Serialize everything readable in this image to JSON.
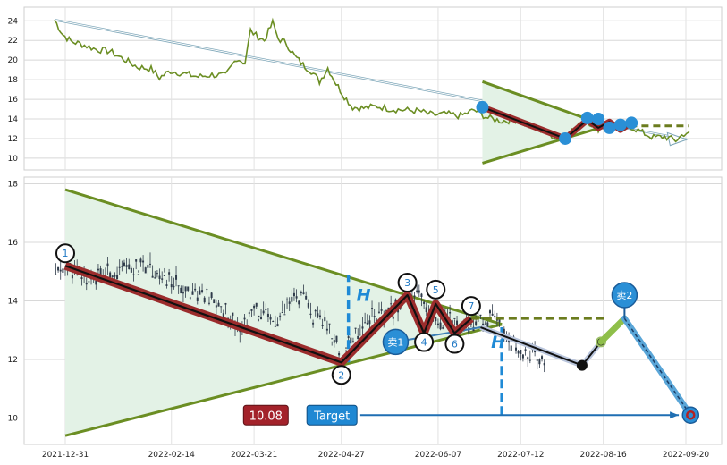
{
  "chart_data": [
    {
      "type": "line",
      "panel": "overview",
      "y_ticks": [
        10,
        12,
        14,
        16,
        18,
        20,
        22,
        24
      ],
      "ylim": [
        8.9,
        25.3
      ],
      "series_color": "#6b8e23",
      "price_series": [
        [
          0,
          24.1
        ],
        [
          3,
          22.6
        ],
        [
          6,
          21.9
        ],
        [
          10,
          21.6
        ],
        [
          15,
          21.1
        ],
        [
          20,
          20.9
        ],
        [
          25,
          20.1
        ],
        [
          30,
          19.3
        ],
        [
          35,
          19.1
        ],
        [
          38,
          18.2
        ],
        [
          42,
          18.9
        ],
        [
          47,
          18.6
        ],
        [
          52,
          18.3
        ],
        [
          57,
          18.5
        ],
        [
          62,
          18.4
        ],
        [
          66,
          20.2
        ],
        [
          69,
          19.7
        ],
        [
          71,
          23.0
        ],
        [
          73,
          22.5
        ],
        [
          76,
          22.0
        ],
        [
          79,
          23.8
        ],
        [
          81,
          22.2
        ],
        [
          84,
          21.7
        ],
        [
          87,
          20.4
        ],
        [
          90,
          19.5
        ],
        [
          93,
          18.9
        ],
        [
          96,
          17.8
        ],
        [
          99,
          19.2
        ],
        [
          102,
          17.6
        ],
        [
          105,
          16.3
        ],
        [
          108,
          15.2
        ],
        [
          112,
          15.1
        ],
        [
          117,
          15.3
        ],
        [
          122,
          15.0
        ],
        [
          127,
          14.9
        ],
        [
          132,
          14.8
        ],
        [
          137,
          14.4
        ],
        [
          142,
          14.5
        ],
        [
          147,
          14.3
        ],
        [
          152,
          14.9
        ],
        [
          157,
          14.1
        ],
        [
          162,
          13.8
        ],
        [
          167,
          13.9
        ],
        [
          172,
          13.3
        ],
        [
          177,
          12.8
        ],
        [
          181,
          12.2
        ],
        [
          185,
          12.4
        ],
        [
          189,
          13.1
        ],
        [
          193,
          13.8
        ],
        [
          197,
          13.0
        ],
        [
          201,
          13.4
        ],
        [
          205,
          12.9
        ],
        [
          209,
          13.2
        ],
        [
          213,
          12.6
        ],
        [
          217,
          12.1
        ],
        [
          221,
          12.2
        ],
        [
          225,
          11.8
        ],
        [
          228,
          12.5
        ],
        [
          230,
          12.7
        ]
      ],
      "overlay_index_range": [
        155,
        225
      ],
      "x_days_total": 265
    },
    {
      "type": "line",
      "panel": "detail",
      "x_tick_labels": [
        "2021-12-31",
        "2022-02-14",
        "2022-03-21",
        "2022-04-27",
        "2022-06-07",
        "2022-07-12",
        "2022-08-16",
        "2022-09-20"
      ],
      "x_tick_days": [
        0,
        45,
        80,
        117,
        158,
        193,
        228,
        263
      ],
      "y_ticks": [
        10,
        12,
        14,
        16,
        18
      ],
      "ylim": [
        9.1,
        18.2
      ],
      "candles_range": [
        -4,
        203
      ],
      "candle_price_anchors": [
        [
          -4,
          14.9
        ],
        [
          0,
          15.1
        ],
        [
          10,
          14.8
        ],
        [
          20,
          15.0
        ],
        [
          30,
          15.1
        ],
        [
          35,
          15.3
        ],
        [
          40,
          14.8
        ],
        [
          50,
          14.5
        ],
        [
          60,
          14.1
        ],
        [
          70,
          13.5
        ],
        [
          75,
          13.0
        ],
        [
          80,
          13.7
        ],
        [
          90,
          13.2
        ],
        [
          95,
          13.9
        ],
        [
          100,
          14.2
        ],
        [
          105,
          13.4
        ],
        [
          110,
          13.3
        ],
        [
          115,
          12.5
        ],
        [
          117,
          12.0
        ],
        [
          120,
          12.6
        ],
        [
          125,
          13.1
        ],
        [
          130,
          13.6
        ],
        [
          135,
          13.4
        ],
        [
          140,
          13.8
        ],
        [
          145,
          14.1
        ],
        [
          150,
          14.2
        ],
        [
          155,
          13.5
        ],
        [
          160,
          13.2
        ],
        [
          165,
          13.4
        ],
        [
          170,
          13.1
        ],
        [
          175,
          13.2
        ],
        [
          180,
          13.4
        ],
        [
          185,
          13.0
        ],
        [
          190,
          12.5
        ],
        [
          195,
          12.2
        ],
        [
          200,
          12.1
        ],
        [
          203,
          12.0
        ]
      ],
      "triangle_upper": [
        [
          0,
          17.8
        ],
        [
          185,
          13.2
        ]
      ],
      "triangle_lower": [
        [
          0,
          9.4
        ],
        [
          185,
          13.2
        ]
      ],
      "pattern_points": [
        {
          "id": "1",
          "day": 0,
          "price": 15.2
        },
        {
          "id": "2",
          "day": 117,
          "price": 11.9
        },
        {
          "id": "3",
          "day": 145,
          "price": 14.2
        },
        {
          "id": "4",
          "day": 152,
          "price": 12.9
        },
        {
          "id": "5",
          "day": 157,
          "price": 13.9
        },
        {
          "id": "6",
          "day": 165,
          "price": 12.9
        },
        {
          "id": "7",
          "day": 172,
          "price": 13.4
        }
      ],
      "breakout_line": [
        [
          172,
          13.4
        ],
        [
          230,
          13.4
        ]
      ],
      "black_path": [
        [
          176,
          13.1
        ],
        [
          219,
          11.8
        ],
        [
          227,
          12.6
        ]
      ],
      "green_segment": [
        [
          227,
          12.6
        ],
        [
          237,
          13.4
        ]
      ],
      "target_path": [
        [
          237,
          13.4
        ],
        [
          265,
          10.1
        ]
      ],
      "sell1": {
        "label": "卖1",
        "day": 140,
        "price": 12.6
      },
      "sell2": {
        "label": "卖2",
        "day": 237,
        "price": 14.2
      },
      "target_point": {
        "day": 265,
        "price": 10.1
      },
      "height_marker_1": {
        "label": "H",
        "day": 120,
        "from": 11.9,
        "to": 14.9
      },
      "height_marker_2": {
        "label": "H",
        "day": 185,
        "from": 10.1,
        "to": 13.1
      },
      "value_box": {
        "text": "10.08",
        "day": 85,
        "price": 10.1
      },
      "target_box": {
        "text": "Target",
        "day": 113,
        "price": 10.1
      },
      "target_arrow": [
        [
          125,
          10.1
        ],
        [
          260,
          10.1
        ]
      ]
    }
  ],
  "colors": {
    "triangle_line": "#6b8e23",
    "triangle_fill": "#e3f2e6",
    "pattern_outer": "#9b2c2c",
    "pattern_inner": "#111111",
    "sell_marker": "#2a8fd6",
    "height_marker": "#1f8ad6",
    "value_box": "#a3222a",
    "target_box": "#1f88d3",
    "candle": "#2f3b4a"
  }
}
